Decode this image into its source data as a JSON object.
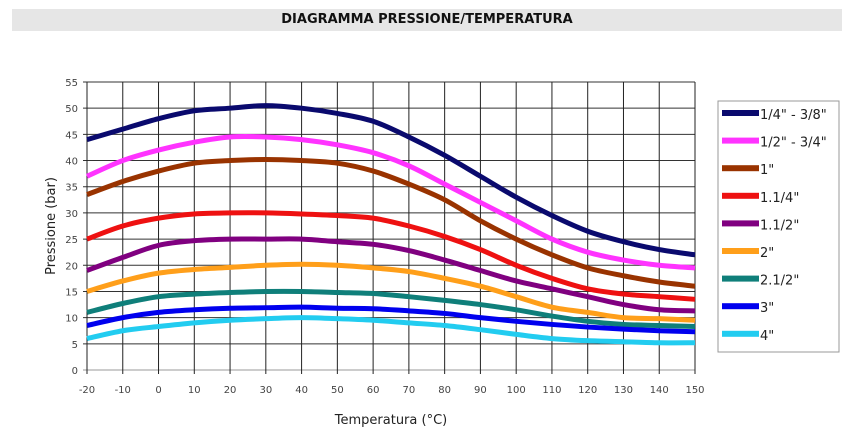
{
  "chart_data": {
    "type": "line",
    "title": "DIAGRAMMA PRESSIONE/TEMPERATURA",
    "xlabel": "Temperatura (°C)",
    "ylabel": "Pressione (bar)",
    "xlim": [
      -20,
      150
    ],
    "ylim": [
      0,
      55
    ],
    "xticks": [
      -20,
      -10,
      0,
      10,
      20,
      30,
      40,
      50,
      60,
      70,
      80,
      90,
      100,
      110,
      120,
      130,
      140,
      150
    ],
    "yticks": [
      0,
      5,
      10,
      15,
      20,
      25,
      30,
      35,
      40,
      45,
      50,
      55
    ],
    "grid": true,
    "legend_position": "right",
    "x": [
      -20,
      -10,
      0,
      10,
      20,
      30,
      40,
      50,
      60,
      70,
      80,
      90,
      100,
      110,
      120,
      130,
      140,
      150
    ],
    "series": [
      {
        "name": "1/4\" - 3/8\"",
        "color": "#0a0a6e",
        "values": [
          44,
          46,
          48,
          49.5,
          50,
          50.5,
          50,
          49,
          47.5,
          44.5,
          41,
          37,
          33,
          29.5,
          26.5,
          24.5,
          23,
          22
        ]
      },
      {
        "name": "1/2\" - 3/4\"",
        "color": "#ff33ff",
        "values": [
          37,
          40,
          42,
          43.5,
          44.5,
          44.5,
          44,
          43,
          41.5,
          39,
          35.5,
          32,
          28.5,
          25,
          22.5,
          21,
          20,
          19.5
        ]
      },
      {
        "name": "1\"",
        "color": "#993300",
        "values": [
          33.5,
          36,
          38,
          39.5,
          40,
          40.2,
          40,
          39.5,
          38,
          35.5,
          32.5,
          28.5,
          25,
          22,
          19.5,
          18,
          16.8,
          16
        ]
      },
      {
        "name": "1.1/4\"",
        "color": "#ee1111",
        "values": [
          25,
          27.5,
          29,
          29.8,
          30,
          30,
          29.8,
          29.5,
          29,
          27.5,
          25.5,
          23,
          20,
          17.5,
          15.5,
          14.5,
          14,
          13.5
        ]
      },
      {
        "name": "1.1/2\"",
        "color": "#800080",
        "values": [
          19,
          21.5,
          23.8,
          24.7,
          25,
          25,
          25,
          24.5,
          24,
          22.8,
          21,
          19,
          17,
          15.5,
          14,
          12.5,
          11.5,
          11.3
        ]
      },
      {
        "name": "2\"",
        "color": "#ff9f1a",
        "values": [
          15,
          17,
          18.5,
          19.2,
          19.6,
          20,
          20.2,
          20,
          19.5,
          18.8,
          17.5,
          16,
          14,
          12,
          11,
          10,
          9.8,
          9.5
        ]
      },
      {
        "name": "2.1/2\"",
        "color": "#0f7f7a",
        "values": [
          11,
          12.7,
          14,
          14.5,
          14.8,
          15,
          15,
          14.8,
          14.6,
          14,
          13.3,
          12.5,
          11.5,
          10.3,
          9.3,
          8.7,
          8.5,
          8.3
        ]
      },
      {
        "name": "3\"",
        "color": "#0000ee",
        "values": [
          8.5,
          10,
          11,
          11.5,
          11.8,
          11.9,
          12,
          11.8,
          11.7,
          11.3,
          10.8,
          10,
          9.3,
          8.7,
          8.2,
          7.8,
          7.5,
          7.3
        ]
      },
      {
        "name": "4\"",
        "color": "#22ccf0",
        "values": [
          6,
          7.5,
          8.3,
          9,
          9.5,
          9.8,
          10,
          9.8,
          9.5,
          9,
          8.5,
          7.7,
          6.8,
          6,
          5.6,
          5.4,
          5.2,
          5.2
        ]
      }
    ]
  }
}
